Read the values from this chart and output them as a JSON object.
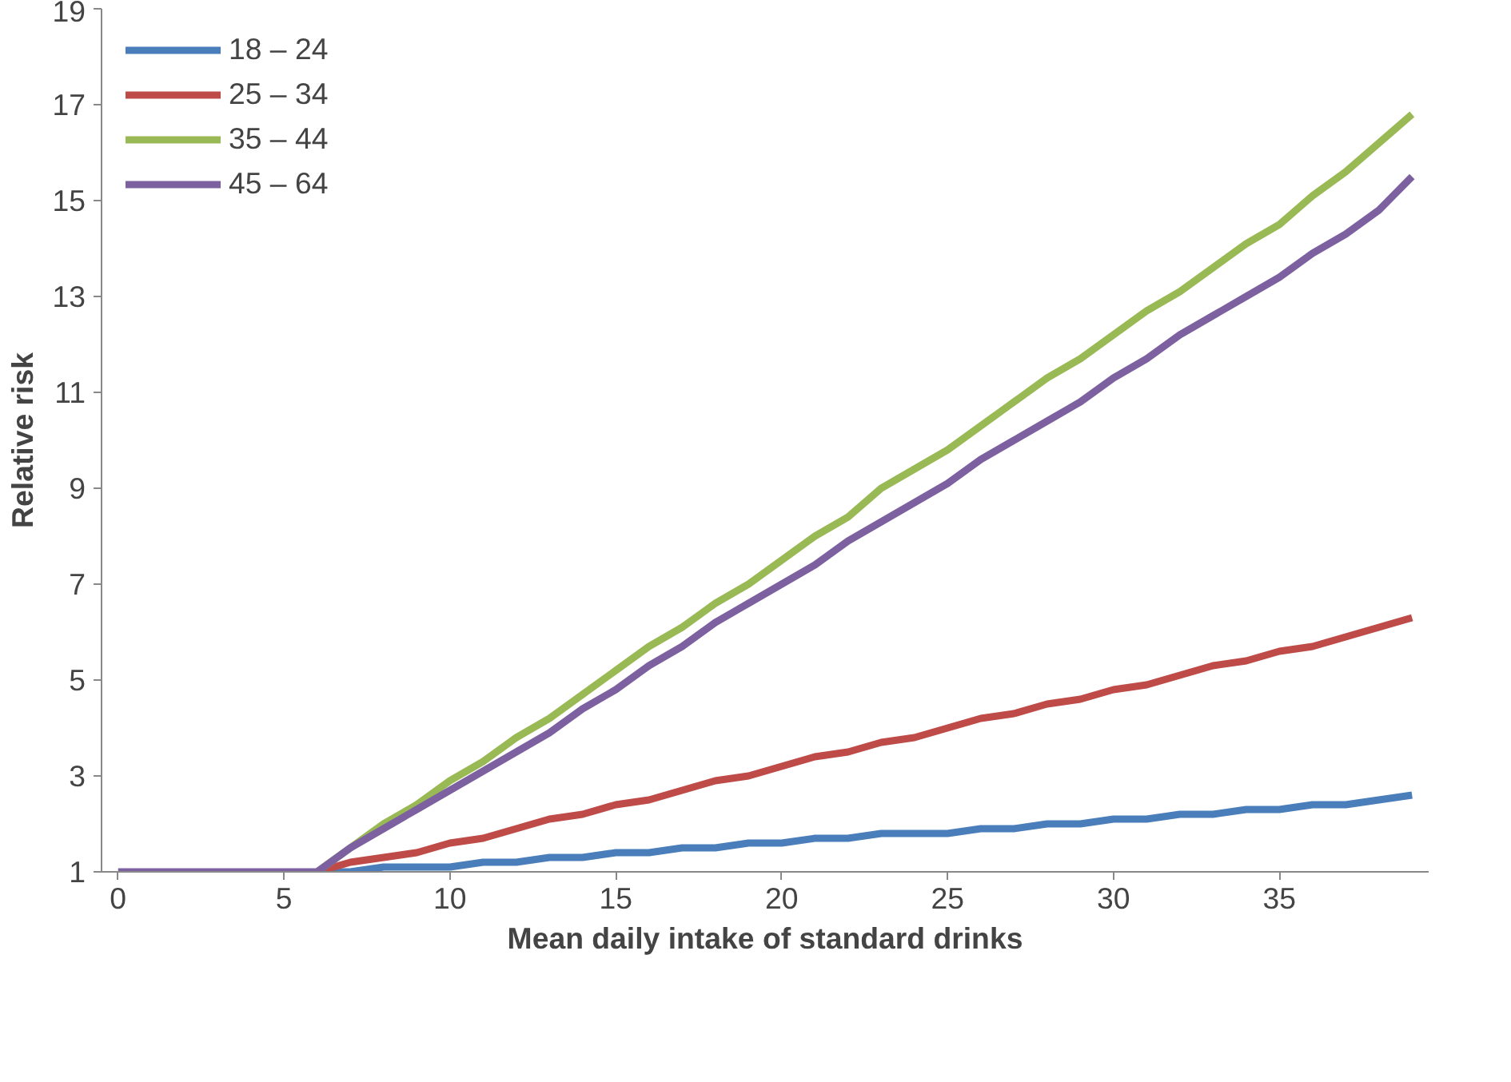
{
  "chart_data": {
    "type": "line",
    "xlabel": "Mean daily intake of standard drinks",
    "ylabel": "Relative risk",
    "x": [
      0,
      1,
      2,
      3,
      4,
      5,
      6,
      7,
      8,
      9,
      10,
      11,
      12,
      13,
      14,
      15,
      16,
      17,
      18,
      19,
      20,
      21,
      22,
      23,
      24,
      25,
      26,
      27,
      28,
      29,
      30,
      31,
      32,
      33,
      34,
      35,
      36,
      37,
      38,
      39
    ],
    "series": [
      {
        "name": "18 – 24",
        "color": "#4a7ebb",
        "values": [
          null,
          null,
          null,
          null,
          null,
          null,
          1,
          1.0,
          1.1,
          1.1,
          1.1,
          1.2,
          1.2,
          1.3,
          1.3,
          1.4,
          1.4,
          1.5,
          1.5,
          1.6,
          1.6,
          1.7,
          1.7,
          1.8,
          1.8,
          1.8,
          1.9,
          1.9,
          2.0,
          2.0,
          2.1,
          2.1,
          2.2,
          2.2,
          2.3,
          2.3,
          2.4,
          2.4,
          2.5,
          2.6
        ]
      },
      {
        "name": "25 – 34",
        "color": "#be4b48",
        "values": [
          null,
          null,
          null,
          null,
          null,
          null,
          1,
          1.2,
          1.3,
          1.4,
          1.6,
          1.7,
          1.9,
          2.1,
          2.2,
          2.4,
          2.5,
          2.7,
          2.9,
          3.0,
          3.2,
          3.4,
          3.5,
          3.7,
          3.8,
          4.0,
          4.2,
          4.3,
          4.5,
          4.6,
          4.8,
          4.9,
          5.1,
          5.3,
          5.4,
          5.6,
          5.7,
          5.9,
          6.1,
          6.3
        ]
      },
      {
        "name": "35 – 44",
        "color": "#98b954",
        "values": [
          null,
          null,
          null,
          null,
          null,
          null,
          1,
          1.5,
          2.0,
          2.4,
          2.9,
          3.3,
          3.8,
          4.2,
          4.7,
          5.2,
          5.7,
          6.1,
          6.6,
          7.0,
          7.5,
          8.0,
          8.4,
          9.0,
          9.4,
          9.8,
          10.3,
          10.8,
          11.3,
          11.7,
          12.2,
          12.7,
          13.1,
          13.6,
          14.1,
          14.5,
          15.1,
          15.6,
          16.2,
          16.8
        ]
      },
      {
        "name": "45 – 64",
        "color": "#7d60a0",
        "values": [
          1,
          1,
          1,
          1,
          1,
          1,
          1,
          1.5,
          1.9,
          2.3,
          2.7,
          3.1,
          3.5,
          3.9,
          4.4,
          4.8,
          5.3,
          5.7,
          6.2,
          6.6,
          7.0,
          7.4,
          7.9,
          8.3,
          8.7,
          9.1,
          9.6,
          10.0,
          10.4,
          10.8,
          11.3,
          11.7,
          12.2,
          12.6,
          13.0,
          13.4,
          13.9,
          14.3,
          14.8,
          15.5
        ]
      }
    ],
    "xlim": [
      -0.5,
      39.5
    ],
    "xticks": [
      0,
      5,
      10,
      15,
      20,
      25,
      30,
      35
    ],
    "ylim": [
      1,
      19
    ],
    "yticks": [
      1,
      3,
      5,
      7,
      9,
      11,
      13,
      15,
      17,
      19
    ],
    "grid": false,
    "legend": "top left",
    "marker": "none",
    "line_style": "solid"
  }
}
